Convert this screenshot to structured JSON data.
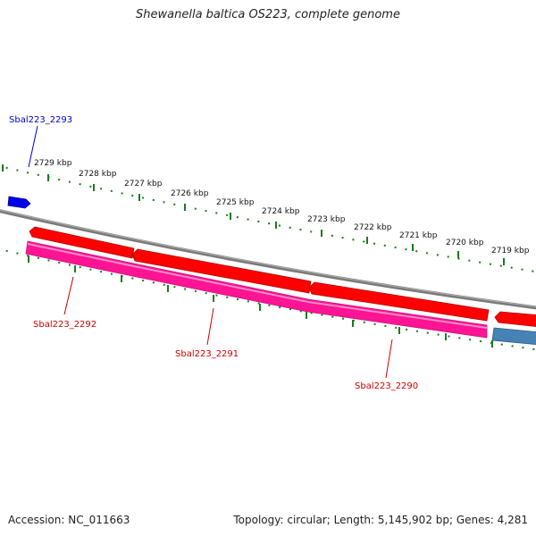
{
  "title": "Shewanella baltica OS223, complete genome",
  "footer": {
    "accession": "Accession: NC_011663",
    "summary": "Topology: circular; Length: 5,145,902 bp; Genes: 4,281"
  },
  "map": {
    "tick_labels": [
      "2729 kbp",
      "2728 kbp",
      "2727 kbp",
      "2726 kbp",
      "2725 kbp",
      "2724 kbp",
      "2723 kbp",
      "2722 kbp",
      "2721 kbp",
      "2720 kbp",
      "2719 kbp"
    ],
    "gene_labels": [
      {
        "text": "Sbal223_2293",
        "color": "#0000cc"
      },
      {
        "text": "Sbal223_2292",
        "color": "#cc0000"
      },
      {
        "text": "Sbal223_2291",
        "color": "#cc0000"
      },
      {
        "text": "Sbal223_2290",
        "color": "#cc0000"
      }
    ],
    "colors": {
      "backbone": "#808080",
      "cds_forward": "#ff0000",
      "cds_reverse": "#ff1493",
      "gene_small": "#0000ee",
      "gene_blue": "#4682b4",
      "ticks": "#1a7a1a"
    }
  }
}
